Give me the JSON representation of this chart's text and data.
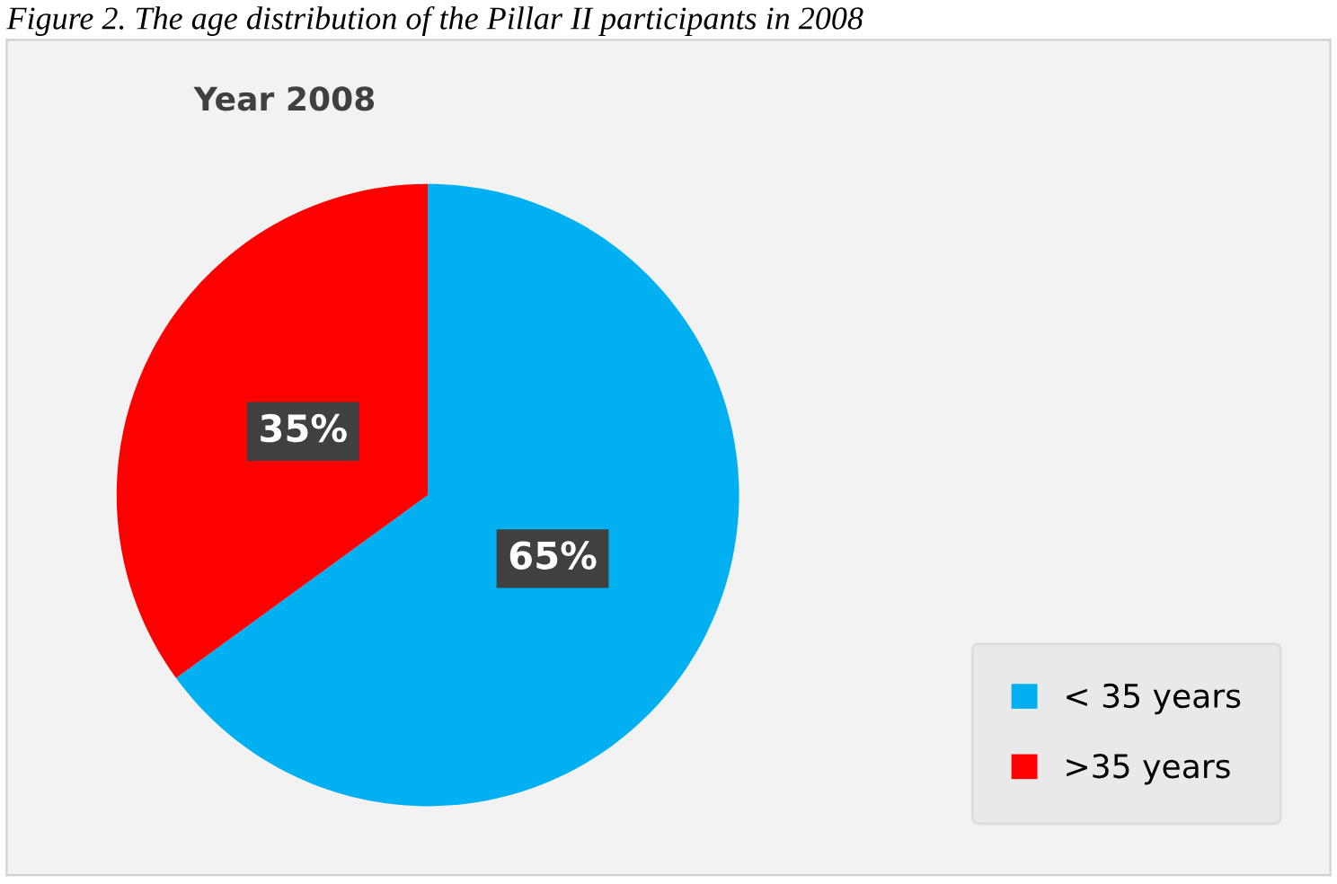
{
  "chart_data": {
    "type": "pie",
    "title": "Year 2008",
    "annotations": [
      "Figure 2. The age distribution of the Pillar II participants in 2008"
    ],
    "categories": [
      "< 35 years",
      ">35 years"
    ],
    "values": [
      65,
      35
    ],
    "colors": [
      "#00b0f0",
      "#ff0000"
    ],
    "value_labels": [
      "65%",
      "35%"
    ],
    "legend": "bottom right"
  }
}
